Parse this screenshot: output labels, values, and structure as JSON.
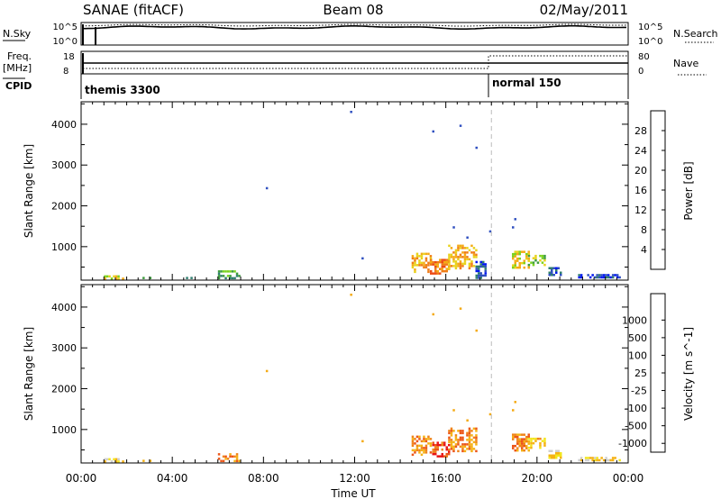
{
  "header": {
    "left": "SANAE (fitACF)",
    "center": "Beam 08",
    "right": "02/May/2011"
  },
  "strips": {
    "nsky_label": "N.Sky",
    "nsearch_label": "N.Search",
    "nsky_ticks": [
      "10^5",
      "10^0"
    ],
    "freq_label_1": "Freq.",
    "freq_label_2": "[MHz]",
    "freq_ticks": [
      "18",
      "8"
    ],
    "nave_label": "Nave",
    "nave_ticks": [
      "80",
      "0"
    ],
    "cpid_label": "CPID",
    "cpid_1": "themis 3300",
    "cpid_2": "normal 150"
  },
  "chart_data": [
    {
      "type": "heatmap",
      "title": "",
      "xlabel": "Time UT",
      "ylabel": "Slant Range [km]",
      "xticks": [
        "00:00",
        "04:00",
        "08:00",
        "12:00",
        "16:00",
        "20:00",
        "00:00"
      ],
      "x_hours": [
        0,
        4,
        8,
        12,
        16,
        20,
        24
      ],
      "yticks": [
        1000,
        2000,
        3000,
        4000
      ],
      "ylim": [
        180,
        4550
      ],
      "marker_hour": 18,
      "colorbar": {
        "label": "Power [dB]",
        "ticks": [
          "4",
          "8",
          "12",
          "16",
          "20",
          "24",
          "28"
        ],
        "colors": [
          "#0016f0",
          "#3050c0",
          "#2e7d6e",
          "#3c9c3c",
          "#7bd21e",
          "#e8d21a",
          "#f4aa14",
          "#ef7c16",
          "#ec4a16",
          "#e81414"
        ]
      },
      "echoes": [
        {
          "t0": 0.9,
          "t1": 1.8,
          "r0": 230,
          "r1": 300,
          "v": 5
        },
        {
          "t0": 2.0,
          "t1": 3.2,
          "r0": 230,
          "r1": 260,
          "v": 2
        },
        {
          "t0": 4.6,
          "t1": 4.9,
          "r0": 230,
          "r1": 260,
          "v": 1
        },
        {
          "t0": 6.0,
          "t1": 6.9,
          "r0": 240,
          "r1": 420,
          "v": 3
        },
        {
          "t0": 7.0,
          "t1": 7.4,
          "r0": 240,
          "r1": 280,
          "v": 2
        },
        {
          "t0": 14.5,
          "t1": 15.3,
          "r0": 380,
          "r1": 850,
          "v": 6
        },
        {
          "t0": 15.3,
          "t1": 16.1,
          "r0": 350,
          "r1": 700,
          "v": 7
        },
        {
          "t0": 16.1,
          "t1": 17.3,
          "r0": 450,
          "r1": 1050,
          "v": 6
        },
        {
          "t0": 17.3,
          "t1": 17.7,
          "r0": 250,
          "r1": 650,
          "v": 1
        },
        {
          "t0": 18.9,
          "t1": 19.6,
          "r0": 500,
          "r1": 900,
          "v": 5
        },
        {
          "t0": 19.6,
          "t1": 20.3,
          "r0": 550,
          "r1": 800,
          "v": 4
        },
        {
          "t0": 20.5,
          "t1": 21.0,
          "r0": 280,
          "r1": 500,
          "v": 1
        },
        {
          "t0": 21.8,
          "t1": 23.6,
          "r0": 240,
          "r1": 330,
          "v": 1
        }
      ]
    },
    {
      "type": "heatmap",
      "title": "",
      "xlabel": "Time UT",
      "ylabel": "Slant Range [km]",
      "xticks": [
        "00:00",
        "04:00",
        "08:00",
        "12:00",
        "16:00",
        "20:00",
        "00:00"
      ],
      "x_hours": [
        0,
        4,
        8,
        12,
        16,
        20,
        24
      ],
      "yticks": [
        1000,
        2000,
        3000,
        4000
      ],
      "ylim": [
        180,
        4550
      ],
      "marker_hour": 18,
      "colorbar": {
        "label": "Velocity [m s^-1]",
        "ticks": [
          "1000",
          "500",
          "100",
          "25",
          "-25",
          "-100",
          "-500",
          "-1000"
        ],
        "colors": [
          "#1a3fb0",
          "#3a6ac8",
          "#2e8d5a",
          "#4cb84c",
          "#a8e08a",
          "#cfcfcf",
          "#f2e61c",
          "#f5b214",
          "#f0841a",
          "#ec5518",
          "#e81414"
        ]
      },
      "echoes": [
        {
          "t0": 0.9,
          "t1": 1.8,
          "r0": 230,
          "r1": 300,
          "v": 6
        },
        {
          "t0": 2.0,
          "t1": 3.2,
          "r0": 230,
          "r1": 260,
          "v": 6
        },
        {
          "t0": 6.0,
          "t1": 6.9,
          "r0": 240,
          "r1": 420,
          "v": 8
        },
        {
          "t0": 14.5,
          "t1": 15.3,
          "r0": 380,
          "r1": 850,
          "v": 8
        },
        {
          "t0": 15.3,
          "t1": 16.1,
          "r0": 350,
          "r1": 700,
          "v": 9
        },
        {
          "t0": 16.1,
          "t1": 17.3,
          "r0": 450,
          "r1": 1050,
          "v": 8
        },
        {
          "t0": 18.9,
          "t1": 19.6,
          "r0": 500,
          "r1": 900,
          "v": 8
        },
        {
          "t0": 19.6,
          "t1": 20.3,
          "r0": 550,
          "r1": 800,
          "v": 7
        },
        {
          "t0": 20.5,
          "t1": 21.0,
          "r0": 280,
          "r1": 500,
          "v": 6
        },
        {
          "t0": 21.8,
          "t1": 23.6,
          "r0": 240,
          "r1": 330,
          "v": 6
        }
      ]
    }
  ]
}
